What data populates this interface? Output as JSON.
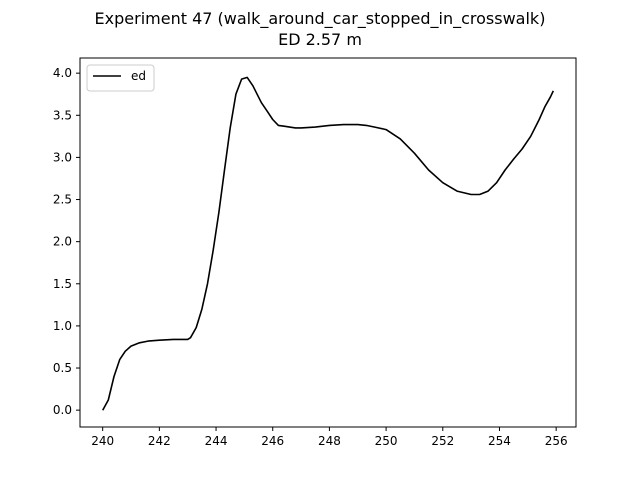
{
  "chart_data": {
    "type": "line",
    "title": "Experiment 47 (walk_around_car_stopped_in_crosswalk)",
    "subtitle": "ED 2.57 m",
    "xlabel": "",
    "ylabel": "",
    "xlim": [
      239.2,
      256.7
    ],
    "ylim": [
      -0.2,
      4.18
    ],
    "xticks": [
      240,
      242,
      244,
      246,
      248,
      250,
      252,
      254,
      256
    ],
    "yticks": [
      0.0,
      0.5,
      1.0,
      1.5,
      2.0,
      2.5,
      3.0,
      3.5,
      4.0
    ],
    "xtick_labels": [
      "240",
      "242",
      "244",
      "246",
      "248",
      "250",
      "252",
      "254",
      "256"
    ],
    "ytick_labels": [
      "0.0",
      "0.5",
      "1.0",
      "1.5",
      "2.0",
      "2.5",
      "3.0",
      "3.5",
      "4.0"
    ],
    "grid": false,
    "legend_position": "upper-left",
    "series": [
      {
        "name": "ed",
        "color": "#000000",
        "x": [
          240.0,
          240.2,
          240.4,
          240.6,
          240.8,
          241.0,
          241.3,
          241.6,
          242.0,
          242.5,
          243.0,
          243.1,
          243.3,
          243.5,
          243.7,
          243.9,
          244.1,
          244.3,
          244.5,
          244.7,
          244.9,
          245.1,
          245.3,
          245.45,
          245.6,
          245.8,
          246.0,
          246.2,
          246.4,
          246.6,
          246.8,
          247.0,
          247.5,
          248.0,
          248.5,
          249.0,
          249.3,
          249.6,
          250.0,
          250.5,
          251.0,
          251.5,
          252.0,
          252.5,
          253.0,
          253.3,
          253.6,
          253.9,
          254.2,
          254.5,
          254.8,
          255.1,
          255.4,
          255.6,
          255.8,
          255.9
        ],
        "values": [
          0.0,
          0.12,
          0.4,
          0.6,
          0.7,
          0.76,
          0.8,
          0.82,
          0.83,
          0.84,
          0.84,
          0.86,
          0.98,
          1.2,
          1.5,
          1.9,
          2.35,
          2.85,
          3.35,
          3.75,
          3.93,
          3.95,
          3.85,
          3.75,
          3.65,
          3.55,
          3.45,
          3.38,
          3.37,
          3.36,
          3.35,
          3.35,
          3.36,
          3.38,
          3.39,
          3.39,
          3.38,
          3.36,
          3.33,
          3.22,
          3.05,
          2.85,
          2.7,
          2.6,
          2.56,
          2.56,
          2.6,
          2.7,
          2.85,
          2.98,
          3.1,
          3.25,
          3.45,
          3.6,
          3.72,
          3.79
        ]
      }
    ]
  }
}
